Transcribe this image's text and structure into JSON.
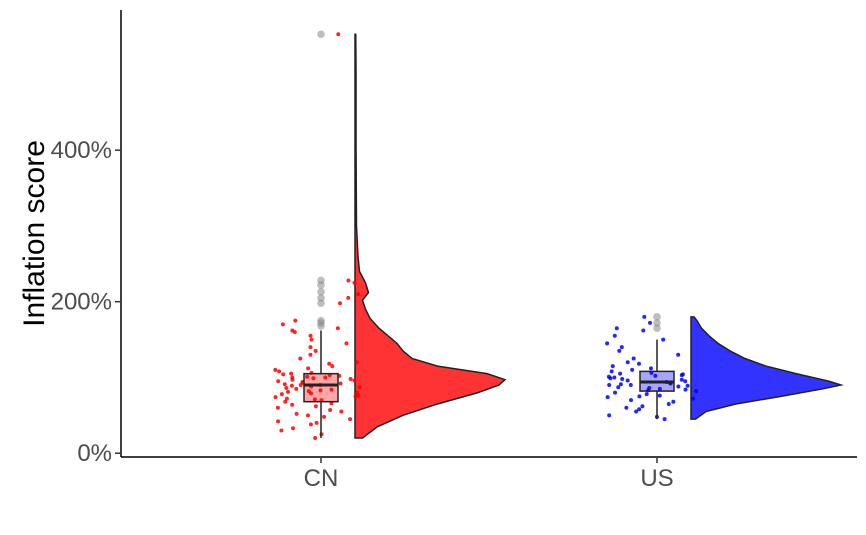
{
  "chart_data": {
    "type": "raincloud",
    "title": "",
    "xlabel": "",
    "ylabel": "Inflation score",
    "ylim": [
      -0.05,
      5.85
    ],
    "y_ticks": [
      0,
      2,
      4
    ],
    "y_tick_labels": [
      "0%",
      "200%",
      "400%"
    ],
    "categories": [
      "CN",
      "US"
    ],
    "grid": false,
    "legend": "none",
    "series": [
      {
        "category": "CN",
        "color": "#ff0000",
        "box": {
          "q1": 0.68,
          "median": 0.9,
          "q3": 1.05,
          "whisker_low": 0.2,
          "whisker_high": 1.62
        },
        "outliers": [
          1.68,
          1.72,
          1.75,
          1.98,
          2.05,
          2.13,
          2.22,
          2.28,
          5.53
        ],
        "density": [
          [
            0.2,
            0.05
          ],
          [
            0.35,
            0.15
          ],
          [
            0.5,
            0.32
          ],
          [
            0.65,
            0.55
          ],
          [
            0.8,
            0.82
          ],
          [
            0.9,
            0.96
          ],
          [
            0.97,
            1.0
          ],
          [
            1.05,
            0.88
          ],
          [
            1.15,
            0.55
          ],
          [
            1.25,
            0.38
          ],
          [
            1.35,
            0.32
          ],
          [
            1.45,
            0.28
          ],
          [
            1.55,
            0.22
          ],
          [
            1.65,
            0.16
          ],
          [
            1.78,
            0.1
          ],
          [
            1.9,
            0.07
          ],
          [
            2.02,
            0.05
          ],
          [
            2.12,
            0.09
          ],
          [
            2.25,
            0.07
          ],
          [
            2.4,
            0.03
          ],
          [
            2.6,
            0.02
          ],
          [
            3.0,
            0.01
          ],
          [
            4.0,
            0.007
          ],
          [
            5.0,
            0.007
          ],
          [
            5.53,
            0.005
          ]
        ],
        "points": [
          0.2,
          0.25,
          0.3,
          0.33,
          0.38,
          0.4,
          0.42,
          0.45,
          0.48,
          0.5,
          0.52,
          0.55,
          0.57,
          0.6,
          0.62,
          0.64,
          0.66,
          0.68,
          0.7,
          0.71,
          0.72,
          0.74,
          0.75,
          0.76,
          0.78,
          0.79,
          0.8,
          0.81,
          0.82,
          0.83,
          0.84,
          0.85,
          0.86,
          0.87,
          0.88,
          0.89,
          0.9,
          0.9,
          0.91,
          0.92,
          0.93,
          0.94,
          0.95,
          0.96,
          0.97,
          0.98,
          0.99,
          1.0,
          1.0,
          1.01,
          1.02,
          1.03,
          1.04,
          1.05,
          1.06,
          1.08,
          1.1,
          1.12,
          1.15,
          1.18,
          1.2,
          1.25,
          1.3,
          1.35,
          1.4,
          1.45,
          1.5,
          1.55,
          1.6,
          1.62,
          1.65,
          1.7,
          1.75,
          1.98,
          2.05,
          2.1,
          2.25,
          2.28,
          5.53
        ]
      },
      {
        "category": "US",
        "color": "#0000ff",
        "box": {
          "q1": 0.82,
          "median": 0.94,
          "q3": 1.08,
          "whisker_low": 0.45,
          "whisker_high": 1.5
        },
        "outliers": [
          1.65,
          1.72,
          1.8
        ],
        "density": [
          [
            0.45,
            0.03
          ],
          [
            0.55,
            0.1
          ],
          [
            0.65,
            0.3
          ],
          [
            0.75,
            0.6
          ],
          [
            0.85,
            0.88
          ],
          [
            0.9,
            1.0
          ],
          [
            0.95,
            0.92
          ],
          [
            1.05,
            0.7
          ],
          [
            1.15,
            0.5
          ],
          [
            1.25,
            0.36
          ],
          [
            1.35,
            0.26
          ],
          [
            1.45,
            0.18
          ],
          [
            1.55,
            0.12
          ],
          [
            1.65,
            0.07
          ],
          [
            1.75,
            0.04
          ],
          [
            1.8,
            0.02
          ]
        ],
        "points": [
          0.45,
          0.48,
          0.5,
          0.55,
          0.58,
          0.6,
          0.62,
          0.65,
          0.68,
          0.7,
          0.72,
          0.74,
          0.75,
          0.76,
          0.78,
          0.8,
          0.82,
          0.83,
          0.84,
          0.85,
          0.86,
          0.87,
          0.88,
          0.89,
          0.9,
          0.9,
          0.91,
          0.92,
          0.93,
          0.94,
          0.95,
          0.96,
          0.97,
          0.98,
          0.99,
          1.0,
          1.01,
          1.02,
          1.03,
          1.04,
          1.05,
          1.06,
          1.08,
          1.1,
          1.12,
          1.15,
          1.18,
          1.2,
          1.25,
          1.3,
          1.35,
          1.4,
          1.45,
          1.5,
          1.55,
          1.62,
          1.65,
          1.72,
          1.8
        ]
      }
    ]
  }
}
